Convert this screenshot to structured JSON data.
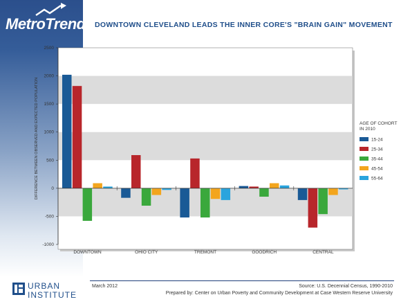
{
  "brand": {
    "name": "MetroTrends"
  },
  "headline": "DOWNTOWN CLEVELAND LEADS THE INNER CORE'S \"BRAIN GAIN\" MOVEMENT",
  "chart_data": {
    "type": "bar",
    "ylabel": "DIFFERENCE BETWEEN OBSERVED AND EXPECTED POPULATION",
    "xlabel": "",
    "ylim": [
      -1000,
      2500
    ],
    "yticks": [
      -1000,
      -500,
      0,
      500,
      1000,
      1500,
      2000,
      2500
    ],
    "grid": "alternating horizontal bands",
    "legend_title": "AGE OF COHORT IN 2010",
    "legend_position": "right",
    "categories": [
      "DOWNTOWN",
      "OHIO CITY",
      "TREMONT",
      "GOODRICH",
      "CENTRAL"
    ],
    "series": [
      {
        "name": "15-24",
        "color": "#1a5a96",
        "values": [
          2020,
          -170,
          -520,
          40,
          -210
        ]
      },
      {
        "name": "25-34",
        "color": "#b8262b",
        "values": [
          1820,
          590,
          530,
          30,
          -700
        ]
      },
      {
        "name": "35-44",
        "color": "#3aa83c",
        "values": [
          -580,
          -310,
          -520,
          -150,
          -460
        ]
      },
      {
        "name": "45-54",
        "color": "#f3a51d",
        "values": [
          90,
          -120,
          -190,
          90,
          -120
        ]
      },
      {
        "name": "55-64",
        "color": "#2aa4dd",
        "values": [
          30,
          -30,
          -210,
          50,
          -20
        ]
      }
    ]
  },
  "footer": {
    "date": "March 2012",
    "source": "Source: U.S. Decennial Census, 1990-2010",
    "prepared": "Prepared by: Center on Urban Poverty and Community Development at Case Western Reserve University",
    "logo_line1": "URBAN",
    "logo_line2": "INSTITUTE"
  }
}
